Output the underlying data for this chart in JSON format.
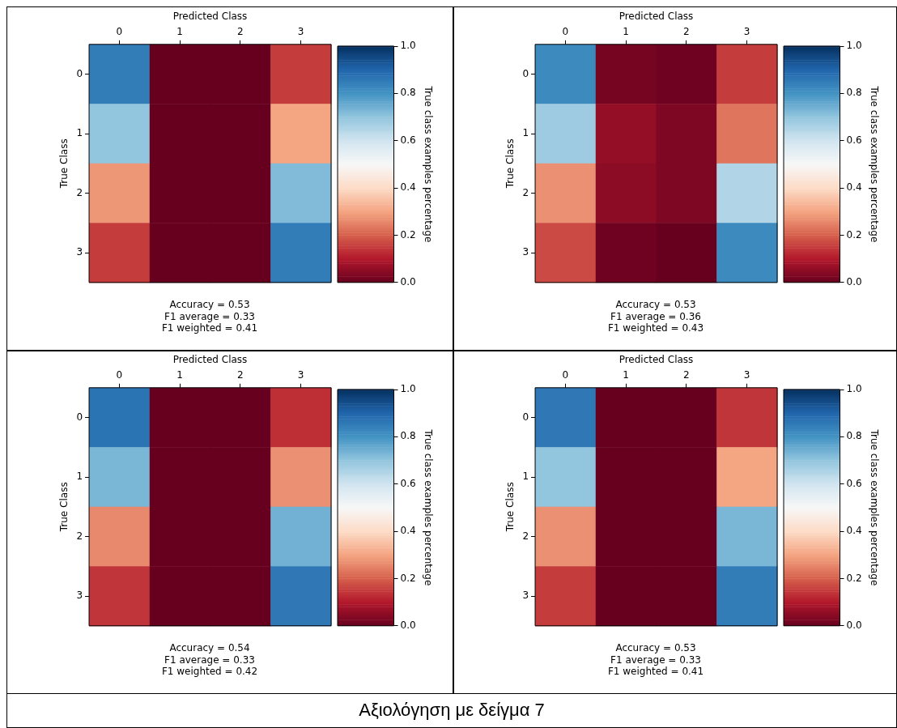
{
  "chart_data": [
    {
      "type": "heatmap",
      "xlabel": "Predicted Class",
      "ylabel": "True Class",
      "clabel": "True class examples percentage",
      "categories": [
        "0",
        "1",
        "2",
        "3"
      ],
      "y_categories": [
        "0",
        "1",
        "2",
        "3"
      ],
      "cells": [
        [
          0.85,
          0,
          0,
          0.15
        ],
        [
          0.7,
          0,
          0,
          0.3
        ],
        [
          0.28,
          0,
          0,
          0.72
        ],
        [
          0.15,
          0,
          0,
          0.85
        ]
      ],
      "clim": [
        0,
        1
      ],
      "cticks": [
        {
          "value": 0,
          "label": "0.0"
        },
        {
          "value": 0.2,
          "label": "0.2"
        },
        {
          "value": 0.4,
          "label": "0.4"
        },
        {
          "value": 0.6,
          "label": "0.6"
        },
        {
          "value": 0.8,
          "label": "0.8"
        },
        {
          "value": 1,
          "label": "1.0"
        }
      ],
      "annotations": [
        "Accuracy = 0.53",
        "F1 average = 0.33",
        "F1 weighted = 0.41"
      ]
    },
    {
      "type": "heatmap",
      "xlabel": "Predicted Class",
      "ylabel": "True Class",
      "clabel": "True class examples percentage",
      "categories": [
        "0",
        "1",
        "2",
        "3"
      ],
      "y_categories": [
        "0",
        "1",
        "2",
        "3"
      ],
      "cells": [
        [
          0.82,
          0.02,
          0.01,
          0.15
        ],
        [
          0.68,
          0.06,
          0.03,
          0.23
        ],
        [
          0.27,
          0.05,
          0.03,
          0.65
        ],
        [
          0.17,
          0.01,
          0,
          0.82
        ]
      ],
      "clim": [
        0,
        1
      ],
      "cticks": [
        {
          "value": 0,
          "label": "0.0"
        },
        {
          "value": 0.2,
          "label": "0.2"
        },
        {
          "value": 0.4,
          "label": "0.4"
        },
        {
          "value": 0.6,
          "label": "0.6"
        },
        {
          "value": 0.8,
          "label": "0.8"
        },
        {
          "value": 1,
          "label": "1.0"
        }
      ],
      "annotations": [
        "Accuracy = 0.53",
        "F1 average = 0.36",
        "F1 weighted = 0.43"
      ]
    },
    {
      "type": "heatmap",
      "xlabel": "Predicted Class",
      "ylabel": "True Class",
      "clabel": "True class examples percentage",
      "categories": [
        "0",
        "1",
        "2",
        "3"
      ],
      "y_categories": [
        "0",
        "1",
        "2",
        "3"
      ],
      "cells": [
        [
          0.87,
          0,
          0,
          0.13
        ],
        [
          0.73,
          0,
          0,
          0.27
        ],
        [
          0.26,
          0,
          0,
          0.74
        ],
        [
          0.14,
          0,
          0,
          0.86
        ]
      ],
      "clim": [
        0,
        1
      ],
      "cticks": [
        {
          "value": 0,
          "label": "0.0"
        },
        {
          "value": 0.2,
          "label": "0.2"
        },
        {
          "value": 0.4,
          "label": "0.4"
        },
        {
          "value": 0.6,
          "label": "0.6"
        },
        {
          "value": 0.8,
          "label": "0.8"
        },
        {
          "value": 1,
          "label": "1.0"
        }
      ],
      "annotations": [
        "Accuracy = 0.54",
        "F1 average = 0.33",
        "F1 weighted = 0.42"
      ]
    },
    {
      "type": "heatmap",
      "xlabel": "Predicted Class",
      "ylabel": "True Class",
      "clabel": "True class examples percentage",
      "categories": [
        "0",
        "1",
        "2",
        "3"
      ],
      "y_categories": [
        "0",
        "1",
        "2",
        "3"
      ],
      "cells": [
        [
          0.86,
          0,
          0,
          0.14
        ],
        [
          0.7,
          0,
          0,
          0.3
        ],
        [
          0.27,
          0,
          0,
          0.73
        ],
        [
          0.15,
          0,
          0,
          0.85
        ]
      ],
      "clim": [
        0,
        1
      ],
      "cticks": [
        {
          "value": 0,
          "label": "0.0"
        },
        {
          "value": 0.2,
          "label": "0.2"
        },
        {
          "value": 0.4,
          "label": "0.4"
        },
        {
          "value": 0.6,
          "label": "0.6"
        },
        {
          "value": 0.8,
          "label": "0.8"
        },
        {
          "value": 1,
          "label": "1.0"
        }
      ],
      "annotations": [
        "Accuracy = 0.53",
        "F1 average = 0.33",
        "F1 weighted = 0.41"
      ]
    },
    {
      "type": "other",
      "title": "Αξιολόγηση με δείγμα 7"
    }
  ]
}
